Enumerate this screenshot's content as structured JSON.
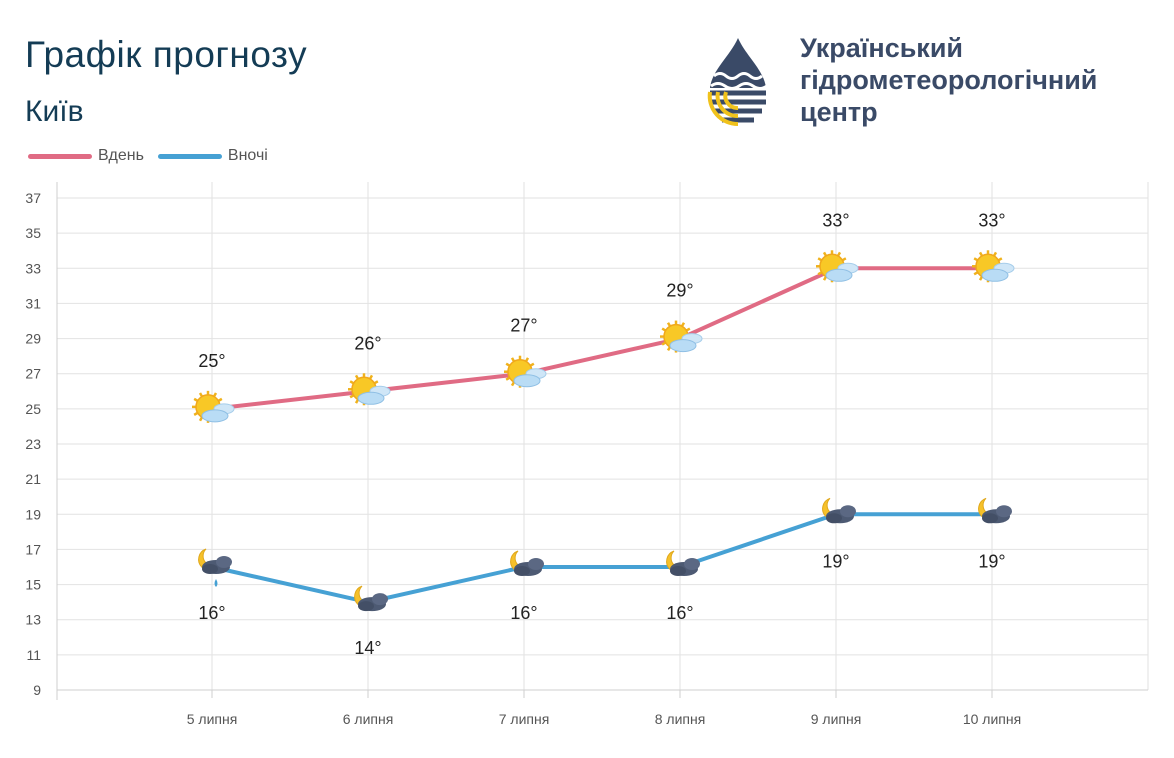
{
  "header": {
    "title": "Графік прогнозу",
    "city": "Київ",
    "org_lines": [
      "Український",
      "гідрометеорологічний",
      "центр"
    ]
  },
  "colors": {
    "day": "#e06b84",
    "night": "#46a1d4",
    "grid": "#e2e2e2",
    "title": "#143c55"
  },
  "chart_data": {
    "type": "line",
    "categories": [
      "5 липня",
      "6 липня",
      "7 липня",
      "8 липня",
      "9 липня",
      "10 липня"
    ],
    "series": [
      {
        "name": "Вдень",
        "values": [
          25,
          26,
          27,
          29,
          33,
          33
        ],
        "labels": [
          "25°",
          "26°",
          "27°",
          "29°",
          "33°",
          "33°"
        ],
        "icons": [
          "sun-cloud-icon",
          "sun-cloud-icon",
          "sun-cloud-icon",
          "sun-cloud-icon",
          "sun-cloud-icon",
          "sun-cloud-icon"
        ]
      },
      {
        "name": "Вночі",
        "values": [
          16,
          14,
          16,
          16,
          19,
          19
        ],
        "labels": [
          "16°",
          "14°",
          "16°",
          "16°",
          "19°",
          "19°"
        ],
        "icons": [
          "moon-cloud-rain-icon",
          "moon-cloud-icon",
          "moon-cloud-icon",
          "moon-cloud-icon",
          "moon-cloud-icon",
          "moon-cloud-icon"
        ]
      }
    ],
    "yticks": [
      "9",
      "11",
      "13",
      "15",
      "17",
      "19",
      "21",
      "23",
      "25",
      "27",
      "29",
      "31",
      "33",
      "35",
      "37"
    ],
    "ylim": [
      9,
      37
    ],
    "grid": true,
    "legend": "top-left"
  }
}
